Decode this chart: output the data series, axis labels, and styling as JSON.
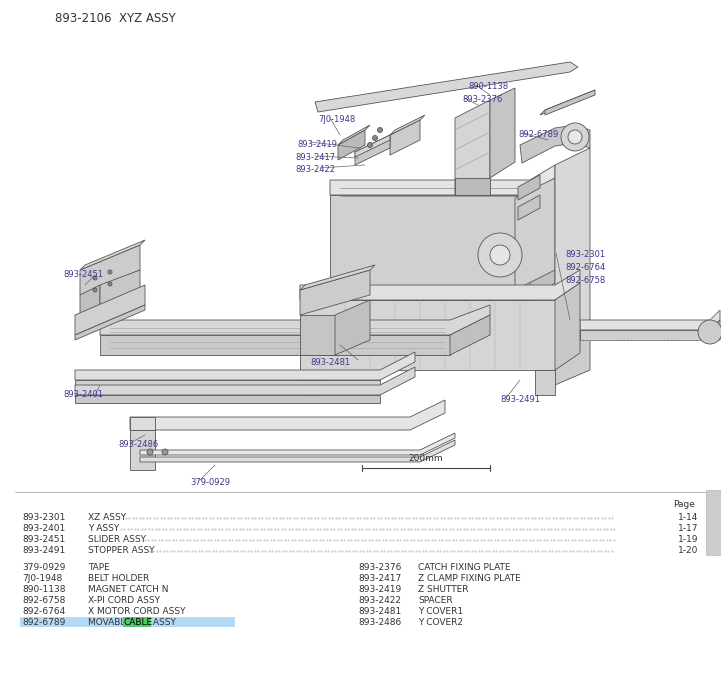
{
  "title": "893-2106  XYZ ASSY",
  "bg_color": "#ffffff",
  "title_color": "#333333",
  "title_fontsize": 8.5,
  "parts_table_header": "Page",
  "parts_main": [
    {
      "num": "893-2301",
      "desc": "XZ ASSY",
      "page": "1-14"
    },
    {
      "num": "893-2401",
      "desc": "Y ASSY",
      "page": "1-17"
    },
    {
      "num": "893-2451",
      "desc": "SLIDER ASSY",
      "page": "1-19"
    },
    {
      "num": "893-2491",
      "desc": "STOPPER ASSY",
      "page": "1-20"
    }
  ],
  "parts_left": [
    {
      "num": "379-0929",
      "desc": "TAPE"
    },
    {
      "num": "7J0-1948",
      "desc": "BELT HOLDER"
    },
    {
      "num": "890-1138",
      "desc": "MAGNET CATCH N"
    },
    {
      "num": "892-6758",
      "desc": "X-PI CORD ASSY"
    },
    {
      "num": "892-6764",
      "desc": "X MOTOR CORD ASSY"
    },
    {
      "num": "892-6789",
      "desc": "MOVABLE CABLE ASSY",
      "highlight": true
    }
  ],
  "parts_right": [
    {
      "num": "893-2376",
      "desc": "CATCH FIXING PLATE"
    },
    {
      "num": "893-2417",
      "desc": "Z CLAMP FIXING PLATE"
    },
    {
      "num": "893-2419",
      "desc": "Z SHUTTER"
    },
    {
      "num": "893-2422",
      "desc": "SPACER"
    },
    {
      "num": "893-2481",
      "desc": "Y COVER1"
    },
    {
      "num": "893-2486",
      "desc": "Y COVER2"
    }
  ],
  "highlighted_part": "892-6789",
  "highlight_row_color": "#b3d9f5",
  "highlight_word": "CABLE",
  "highlight_word_color": "#4fc96a",
  "scale_bar_label": "200mm",
  "line_color": "#555555",
  "label_color": "#3a3a8c",
  "label_fs": 6.0,
  "table_fs": 6.5,
  "table_text_color": "#333333"
}
